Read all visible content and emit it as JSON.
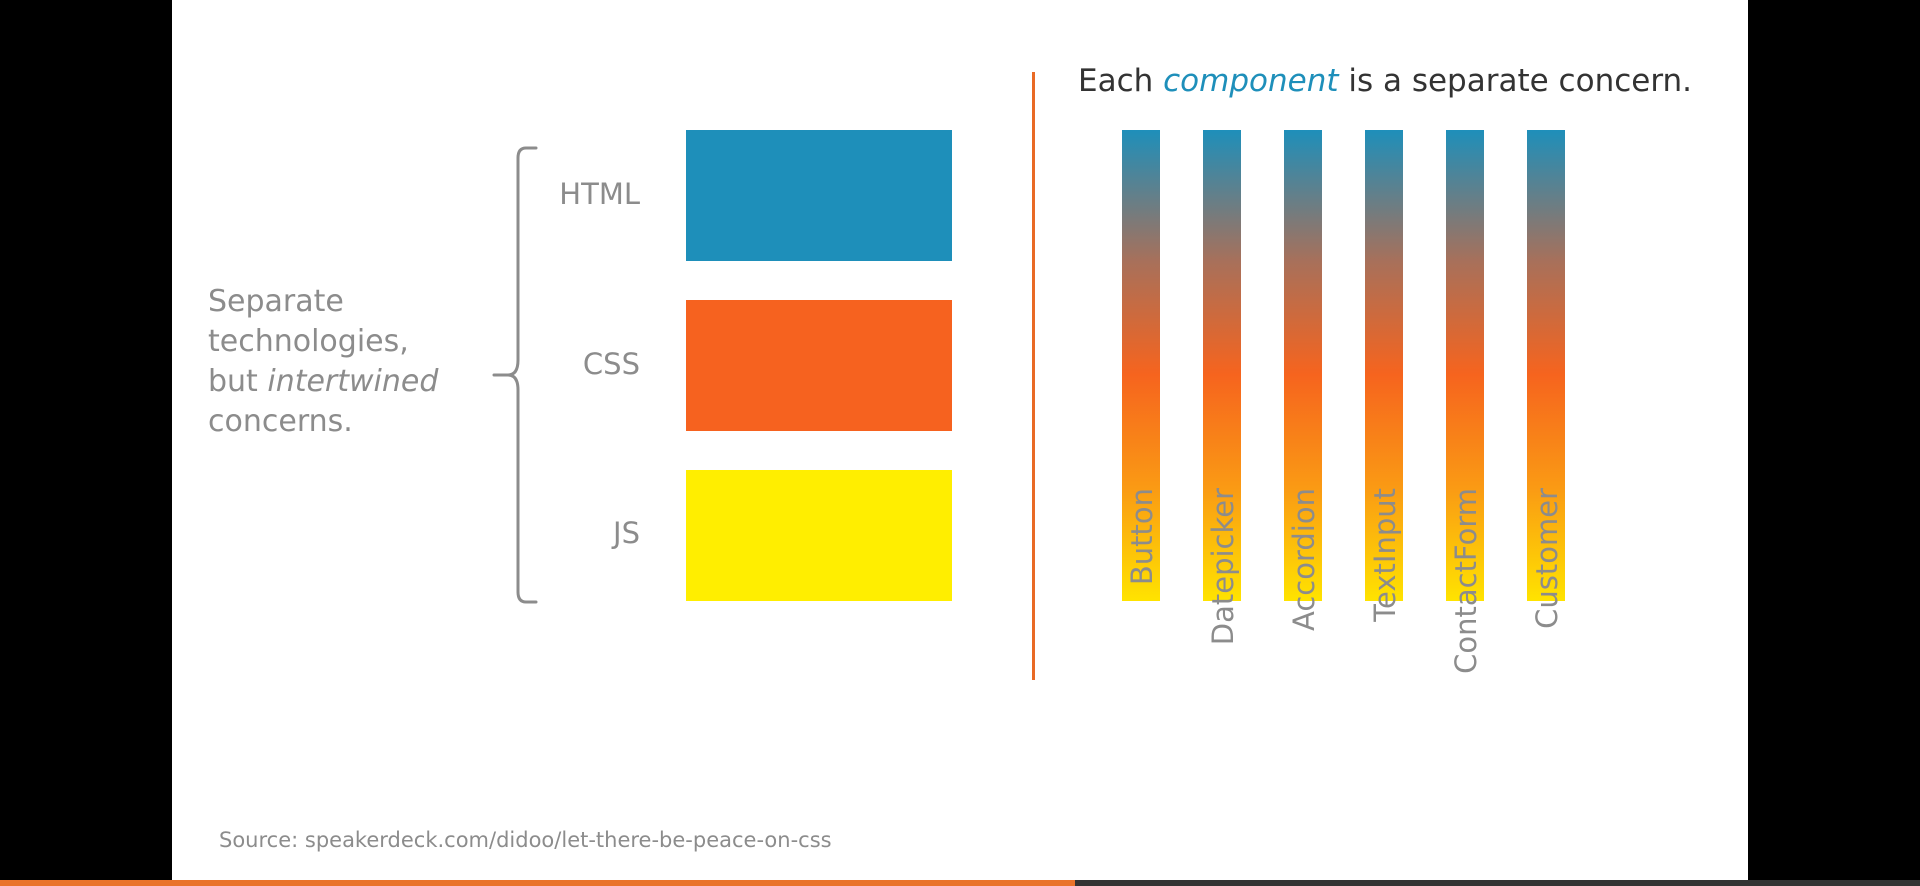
{
  "left": {
    "caption_line1": "Separate",
    "caption_line2": "technologies,",
    "caption_line3_prefix": "but ",
    "caption_line3_em": "intertwined",
    "caption_line4": "concerns.",
    "technologies": [
      {
        "label": "HTML",
        "color": "#1e8fba"
      },
      {
        "label": "CSS",
        "color": "#f6621f"
      },
      {
        "label": "JS",
        "color": "#ffee00"
      }
    ]
  },
  "right": {
    "title_prefix": "Each ",
    "title_highlight": "component",
    "title_suffix": " is a separate concern.",
    "components": [
      "Button",
      "Datepicker",
      "Accordion",
      "TextInput",
      "ContactForm",
      "Customer"
    ]
  },
  "source": "Source: speakerdeck.com/didoo/let-there-be-peace-on-css",
  "player": {
    "progress_fraction": 0.56
  },
  "colors": {
    "accent_blue": "#1e8fba",
    "accent_orange": "#e96a25",
    "text_gray": "#8c8c8c"
  }
}
